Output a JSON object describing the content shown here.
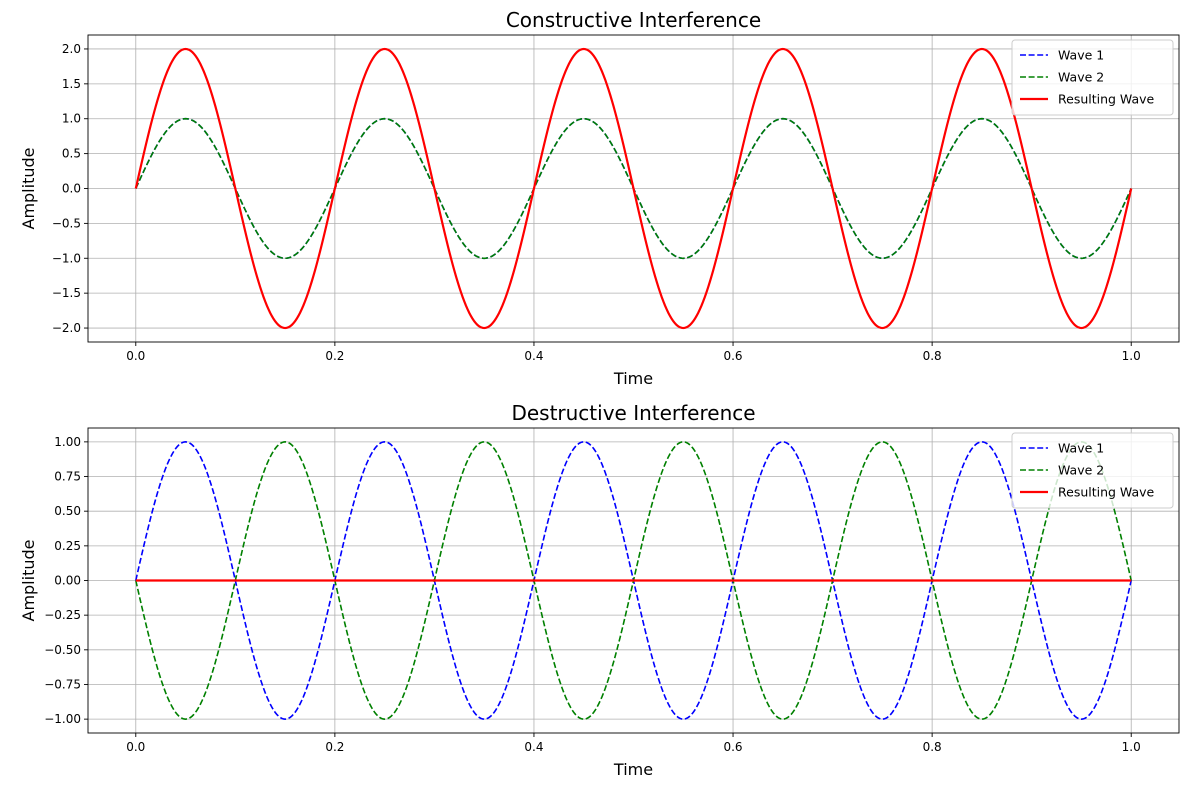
{
  "chart_data": [
    {
      "type": "line",
      "title": "Constructive Interference",
      "xlabel": "Time",
      "ylabel": "Amplitude",
      "xlim": [
        -0.048,
        1.048
      ],
      "ylim": [
        -2.2,
        2.2
      ],
      "x_ticks": [
        0.0,
        0.2,
        0.4,
        0.6,
        0.8,
        1.0
      ],
      "x_tick_labels": [
        "0.0",
        "0.2",
        "0.4",
        "0.6",
        "0.8",
        "1.0"
      ],
      "y_ticks": [
        2.0,
        1.5,
        1.0,
        0.5,
        0.0,
        -0.5,
        -1.0,
        -1.5,
        -2.0
      ],
      "y_tick_labels": [
        "2.0",
        "1.5",
        "1.0",
        "0.5",
        "0.0",
        "−0.5",
        "−1.0",
        "−1.5",
        "−2.0"
      ],
      "grid": true,
      "legend_position": "top-right",
      "x_range": [
        0,
        1
      ],
      "series": [
        {
          "name": "Wave 1",
          "color": "#0000ff",
          "style": "dashed",
          "function": "sin",
          "amplitude": 1,
          "frequency": 5,
          "phase": 0
        },
        {
          "name": "Wave 2",
          "color": "#008000",
          "style": "dashed",
          "function": "sin",
          "amplitude": 1,
          "frequency": 5,
          "phase": 0
        },
        {
          "name": "Resulting Wave",
          "color": "#ff0000",
          "style": "solid",
          "function": "sin",
          "amplitude": 2,
          "frequency": 5,
          "phase": 0
        }
      ]
    },
    {
      "type": "line",
      "title": "Destructive Interference",
      "xlabel": "Time",
      "ylabel": "Amplitude",
      "xlim": [
        -0.048,
        1.048
      ],
      "ylim": [
        -1.1,
        1.1
      ],
      "x_ticks": [
        0.0,
        0.2,
        0.4,
        0.6,
        0.8,
        1.0
      ],
      "x_tick_labels": [
        "0.0",
        "0.2",
        "0.4",
        "0.6",
        "0.8",
        "1.0"
      ],
      "y_ticks": [
        1.0,
        0.75,
        0.5,
        0.25,
        0.0,
        -0.25,
        -0.5,
        -0.75,
        -1.0
      ],
      "y_tick_labels": [
        "1.00",
        "0.75",
        "0.50",
        "0.25",
        "0.00",
        "−0.25",
        "−0.50",
        "−0.75",
        "−1.00"
      ],
      "grid": true,
      "legend_position": "top-right",
      "x_range": [
        0,
        1
      ],
      "series": [
        {
          "name": "Wave 1",
          "color": "#0000ff",
          "style": "dashed",
          "function": "sin",
          "amplitude": 1,
          "frequency": 5,
          "phase": 0
        },
        {
          "name": "Wave 2",
          "color": "#008000",
          "style": "dashed",
          "function": "sin",
          "amplitude": -1,
          "frequency": 5,
          "phase": 0
        },
        {
          "name": "Resulting Wave",
          "color": "#ff0000",
          "style": "solid",
          "function": "sin",
          "amplitude": 0,
          "frequency": 5,
          "phase": 0
        }
      ]
    }
  ]
}
